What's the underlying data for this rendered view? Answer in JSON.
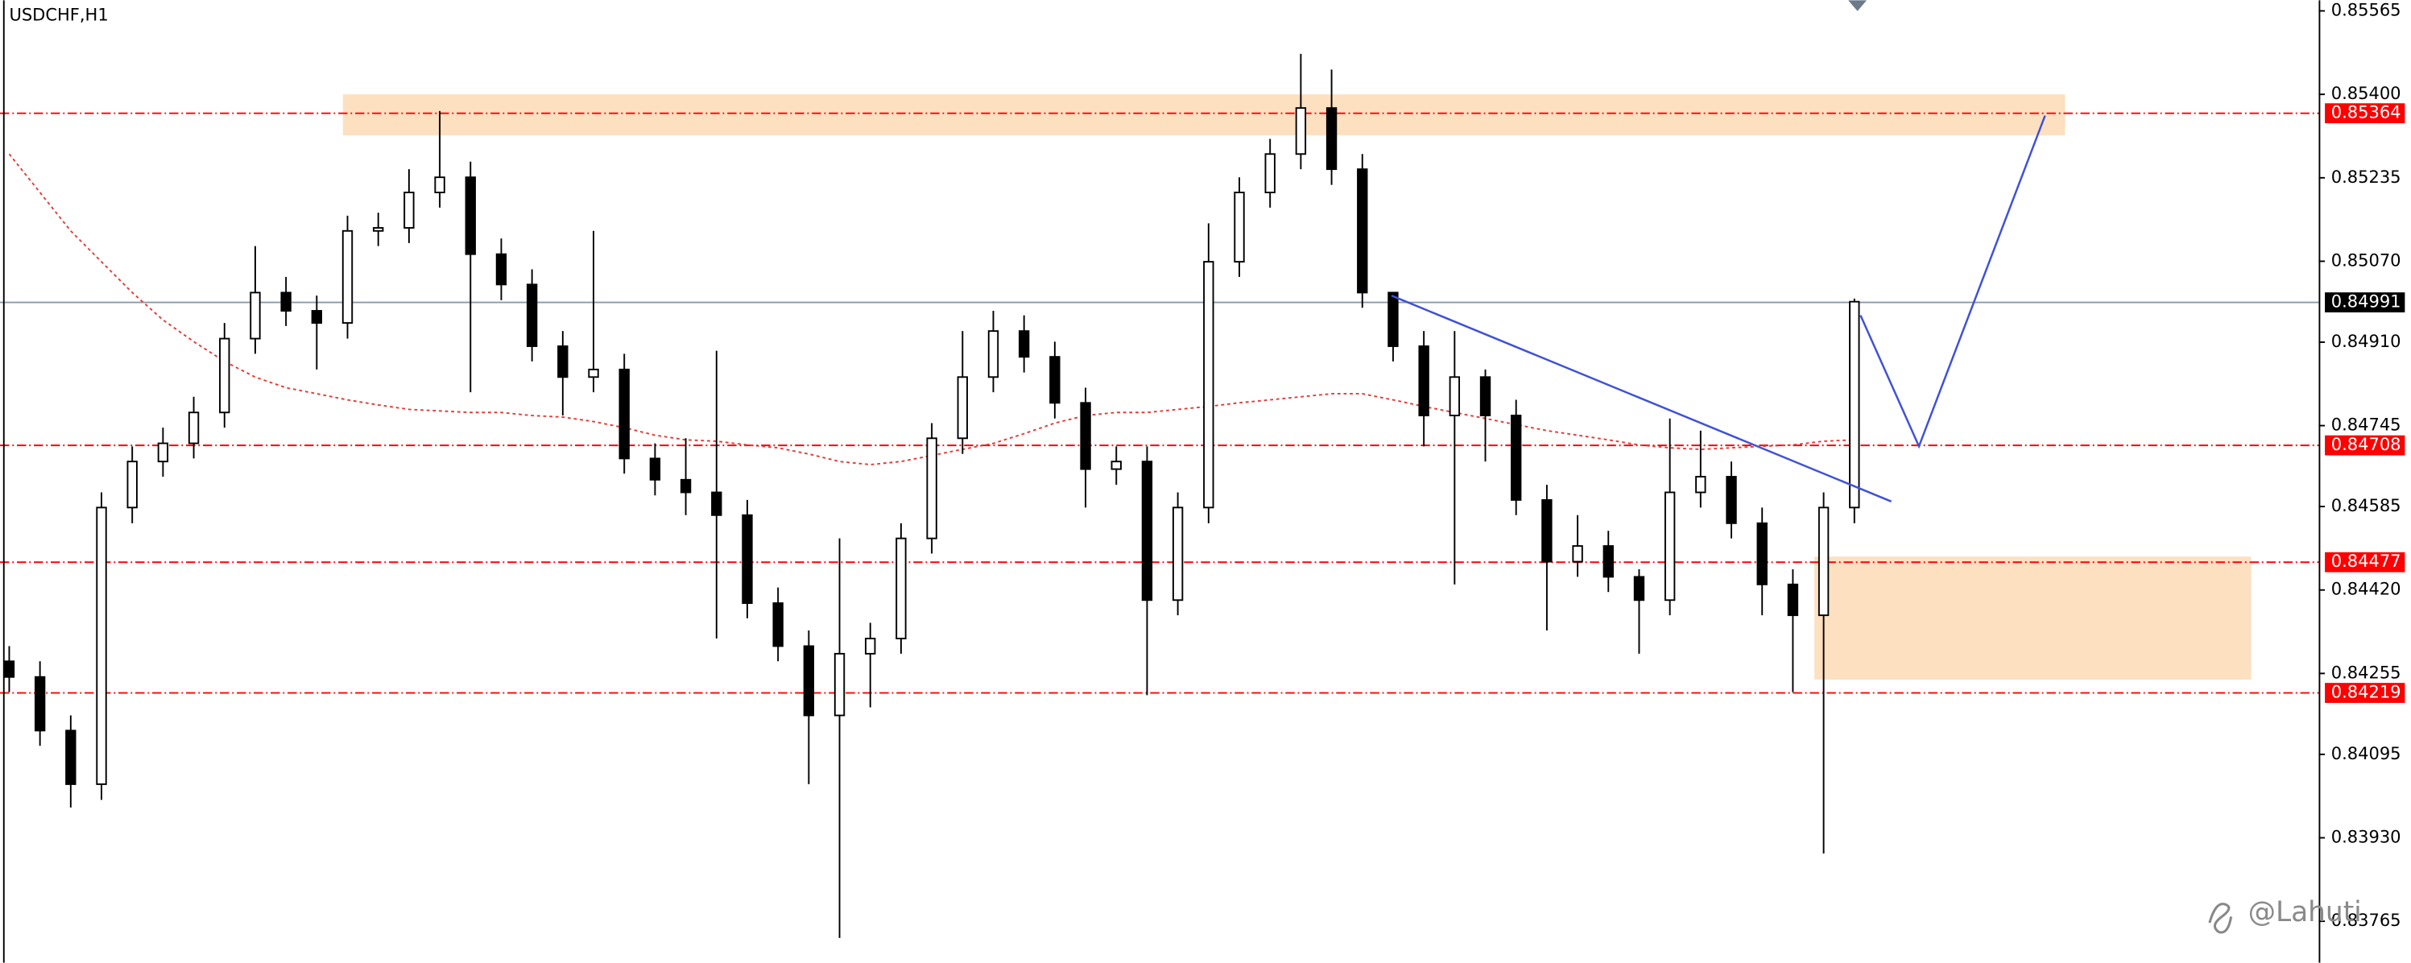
{
  "chart_data": {
    "type": "candlestick",
    "title": "USDCHF,H1",
    "watermark": "@Lahuti",
    "ylim": [
      0.83683,
      0.85586
    ],
    "yticks": [
      0.85565,
      {
        "value": 0.854,
        "label": "0.85400"
      },
      0.85235,
      {
        "value": 0.8507,
        "label": "0.85070"
      },
      {
        "value": 0.8491,
        "label": "0.84910"
      },
      0.84745,
      0.84585,
      {
        "value": 0.8442,
        "label": "0.84420"
      },
      0.84255,
      0.84095,
      {
        "value": 0.8393,
        "label": "0.83930"
      },
      0.83765
    ],
    "open": [
      0.84279,
      0.84248,
      0.84142,
      0.84036,
      0.84583,
      0.84674,
      0.8471,
      0.84771,
      0.84917,
      0.85008,
      0.84972,
      0.84948,
      0.8513,
      0.85136,
      0.85206,
      0.85236,
      0.85084,
      0.85024,
      0.84902,
      0.84841,
      0.84856,
      0.8468,
      0.84638,
      0.84613,
      0.84568,
      0.84394,
      0.84309,
      0.84172,
      0.84294,
      0.84324,
      0.84522,
      0.8472,
      0.84841,
      0.84932,
      0.84881,
      0.8479,
      0.84659,
      0.84674,
      0.844,
      0.84583,
      0.85069,
      0.85206,
      0.85282,
      0.85373,
      0.85252,
      0.85008,
      0.84902,
      0.84765,
      0.84841,
      0.84765,
      0.84598,
      0.84476,
      0.84507,
      0.84446,
      0.844,
      0.84613,
      0.84644,
      0.84552,
      0.84431,
      0.8437,
      0.84583
    ],
    "high": [
      0.84309,
      0.84279,
      0.84172,
      0.84613,
      0.84704,
      0.84741,
      0.84802,
      0.84948,
      0.851,
      0.85039,
      0.85002,
      0.8516,
      0.85166,
      0.85252,
      0.85367,
      0.85267,
      0.85115,
      0.85054,
      0.84932,
      0.8513,
      0.84887,
      0.8471,
      0.8472,
      0.84893,
      0.84598,
      0.84425,
      0.8434,
      0.84522,
      0.84355,
      0.84552,
      0.8475,
      0.84932,
      0.84972,
      0.84963,
      0.84911,
      0.8482,
      0.84704,
      0.84704,
      0.84613,
      0.85145,
      0.85236,
      0.85312,
      0.8548,
      0.85449,
      0.85282,
      0.85008,
      0.84932,
      0.84932,
      0.84856,
      0.84796,
      0.84628,
      0.84568,
      0.84537,
      0.84461,
      0.84759,
      0.84735,
      0.84674,
      0.84583,
      0.84461,
      0.84613,
      0.84996
    ],
    "low": [
      0.84218,
      0.84112,
      0.8399,
      0.84005,
      0.84552,
      0.84644,
      0.8468,
      0.84741,
      0.84887,
      0.84942,
      0.84856,
      0.84917,
      0.851,
      0.85106,
      0.85176,
      0.84811,
      0.84993,
      0.84872,
      0.84765,
      0.84811,
      0.8465,
      0.84607,
      0.84568,
      0.84324,
      0.84364,
      0.84279,
      0.84036,
      0.83732,
      0.84188,
      0.84294,
      0.84492,
      0.84689,
      0.84811,
      0.8485,
      0.84759,
      0.84583,
      0.84628,
      0.84212,
      0.8437,
      0.84552,
      0.85039,
      0.85176,
      0.85252,
      0.85221,
      0.84978,
      0.84872,
      0.84704,
      0.84431,
      0.84674,
      0.84568,
      0.8434,
      0.84446,
      0.84416,
      0.84294,
      0.8437,
      0.84583,
      0.84522,
      0.8437,
      0.84218,
      0.83899,
      0.84552
    ],
    "close": [
      0.84248,
      0.84142,
      0.84036,
      0.84583,
      0.84674,
      0.8471,
      0.84771,
      0.84917,
      0.85008,
      0.84972,
      0.84948,
      0.8513,
      0.85136,
      0.85206,
      0.85236,
      0.85084,
      0.85024,
      0.84902,
      0.84841,
      0.84856,
      0.8468,
      0.84638,
      0.84613,
      0.84568,
      0.84394,
      0.84309,
      0.84172,
      0.84294,
      0.84324,
      0.84522,
      0.8472,
      0.84841,
      0.84932,
      0.84881,
      0.8479,
      0.84659,
      0.84674,
      0.844,
      0.84583,
      0.85069,
      0.85206,
      0.85282,
      0.85373,
      0.85252,
      0.85008,
      0.84902,
      0.84765,
      0.84841,
      0.84765,
      0.84598,
      0.84476,
      0.84507,
      0.84446,
      0.844,
      0.84613,
      0.84644,
      0.84552,
      0.84431,
      0.8437,
      0.84583,
      0.8499
    ],
    "ma": [
      0.85282,
      0.85206,
      0.8513,
      0.85069,
      0.85008,
      0.84954,
      0.84911,
      0.84872,
      0.84841,
      0.8482,
      0.84808,
      0.84796,
      0.84786,
      0.84777,
      0.84774,
      0.84771,
      0.84771,
      0.84765,
      0.84762,
      0.84753,
      0.84741,
      0.84726,
      0.84717,
      0.84714,
      0.84707,
      0.84701,
      0.84689,
      0.84674,
      0.84668,
      0.84674,
      0.84686,
      0.84698,
      0.8471,
      0.84729,
      0.8475,
      0.84765,
      0.84771,
      0.84771,
      0.84777,
      0.84783,
      0.8479,
      0.84796,
      0.84802,
      0.84808,
      0.84808,
      0.84796,
      0.84783,
      0.84771,
      0.84759,
      0.84747,
      0.84735,
      0.84726,
      0.84717,
      0.84707,
      0.84701,
      0.84698,
      0.84701,
      0.84704,
      0.84707,
      0.84714,
      0.84717
    ],
    "ma_color": "#e53935",
    "up_color": "#ffffff",
    "down_color": "#000000",
    "levels": [
      0.85364,
      0.84708,
      0.84477,
      0.84219
    ],
    "level_color": "#ff0000",
    "current_price": 0.84991,
    "zones": [
      [
        0.85319,
        0.854
      ],
      [
        0.84243,
        0.84486
      ]
    ],
    "zone_color": "#fde0c0",
    "trendline": [
      0.85002,
      0.84595
    ],
    "projection": [
      0.84963,
      0.84704,
      0.85358
    ],
    "drawing_color": "#3f51d8"
  }
}
